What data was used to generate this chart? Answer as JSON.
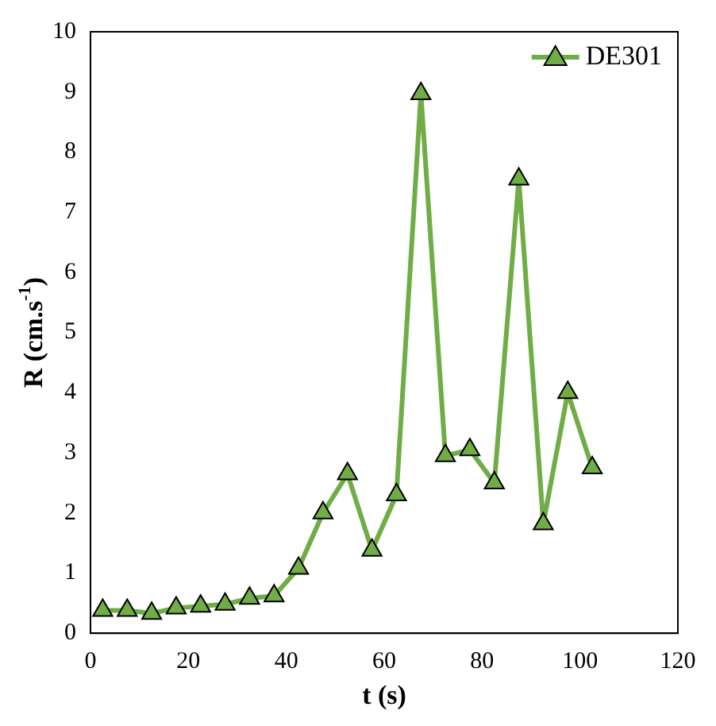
{
  "chart_data": {
    "type": "line",
    "xlabel": "t (s)",
    "ylabel": "R (cm.s$^{-1}$)",
    "x": [
      2.5,
      7.5,
      12.5,
      17.5,
      22.5,
      27.5,
      32.5,
      37.5,
      42.5,
      47.5,
      52.5,
      57.5,
      62.5,
      67.5,
      72.5,
      77.5,
      82.5,
      87.5,
      92.5,
      97.5,
      102.5
    ],
    "series": [
      {
        "name": "DE301",
        "color": "#70ad47",
        "values": [
          0.38,
          0.38,
          0.33,
          0.42,
          0.45,
          0.48,
          0.58,
          0.62,
          1.08,
          2.0,
          2.65,
          1.38,
          2.3,
          8.97,
          2.95,
          3.05,
          2.5,
          7.55,
          1.82,
          4.0,
          2.75
        ]
      }
    ],
    "xlim": [
      0,
      120
    ],
    "xticks": [
      0,
      20,
      40,
      60,
      80,
      100,
      120
    ],
    "ylim": [
      0,
      10
    ],
    "yticks": [
      0,
      1,
      2,
      3,
      4,
      5,
      6,
      7,
      8,
      9,
      10
    ],
    "grid": false,
    "legend": "top right",
    "marker": "triangle",
    "line_style": "solid"
  }
}
